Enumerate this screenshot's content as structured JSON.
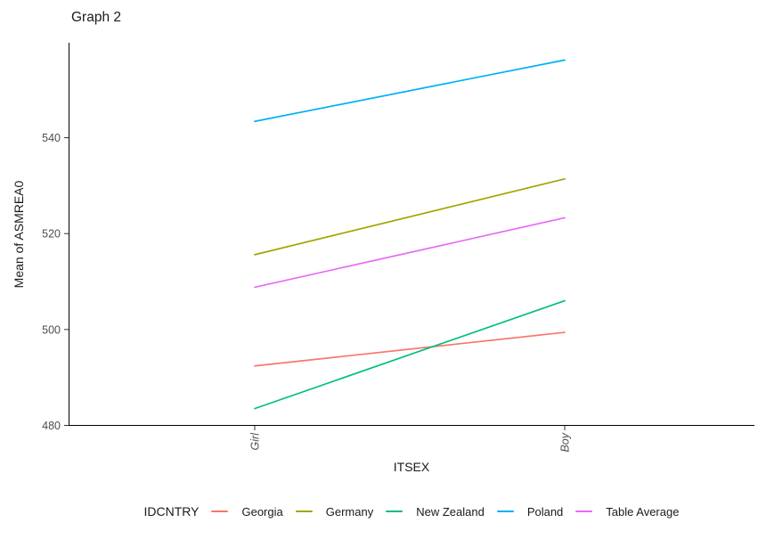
{
  "chart_data": {
    "type": "line",
    "title": "Graph 2",
    "xlabel": "ITSEX",
    "ylabel": "Mean of ASMREA0",
    "categories": [
      "Girl",
      "Boy"
    ],
    "series": [
      {
        "name": "Georgia",
        "values": [
          492.4,
          499.4
        ],
        "color": "#F8766D"
      },
      {
        "name": "Germany",
        "values": [
          515.6,
          531.4
        ],
        "color": "#A3A500"
      },
      {
        "name": "New Zealand",
        "values": [
          483.5,
          506.0
        ],
        "color": "#00BF7D"
      },
      {
        "name": "Poland",
        "values": [
          543.4,
          556.2
        ],
        "color": "#00B0F6"
      },
      {
        "name": "Table Average",
        "values": [
          508.8,
          523.3
        ],
        "color": "#E76BF3"
      }
    ],
    "yticks": [
      480,
      500,
      520,
      540
    ],
    "ylim": [
      479.9,
      559.8
    ],
    "legend_title": "IDCNTRY",
    "legend_position": "bottom",
    "grid": false,
    "background": "#ffffff",
    "axis_color": "#000000",
    "tick_label_color": "#4d4d4d"
  }
}
